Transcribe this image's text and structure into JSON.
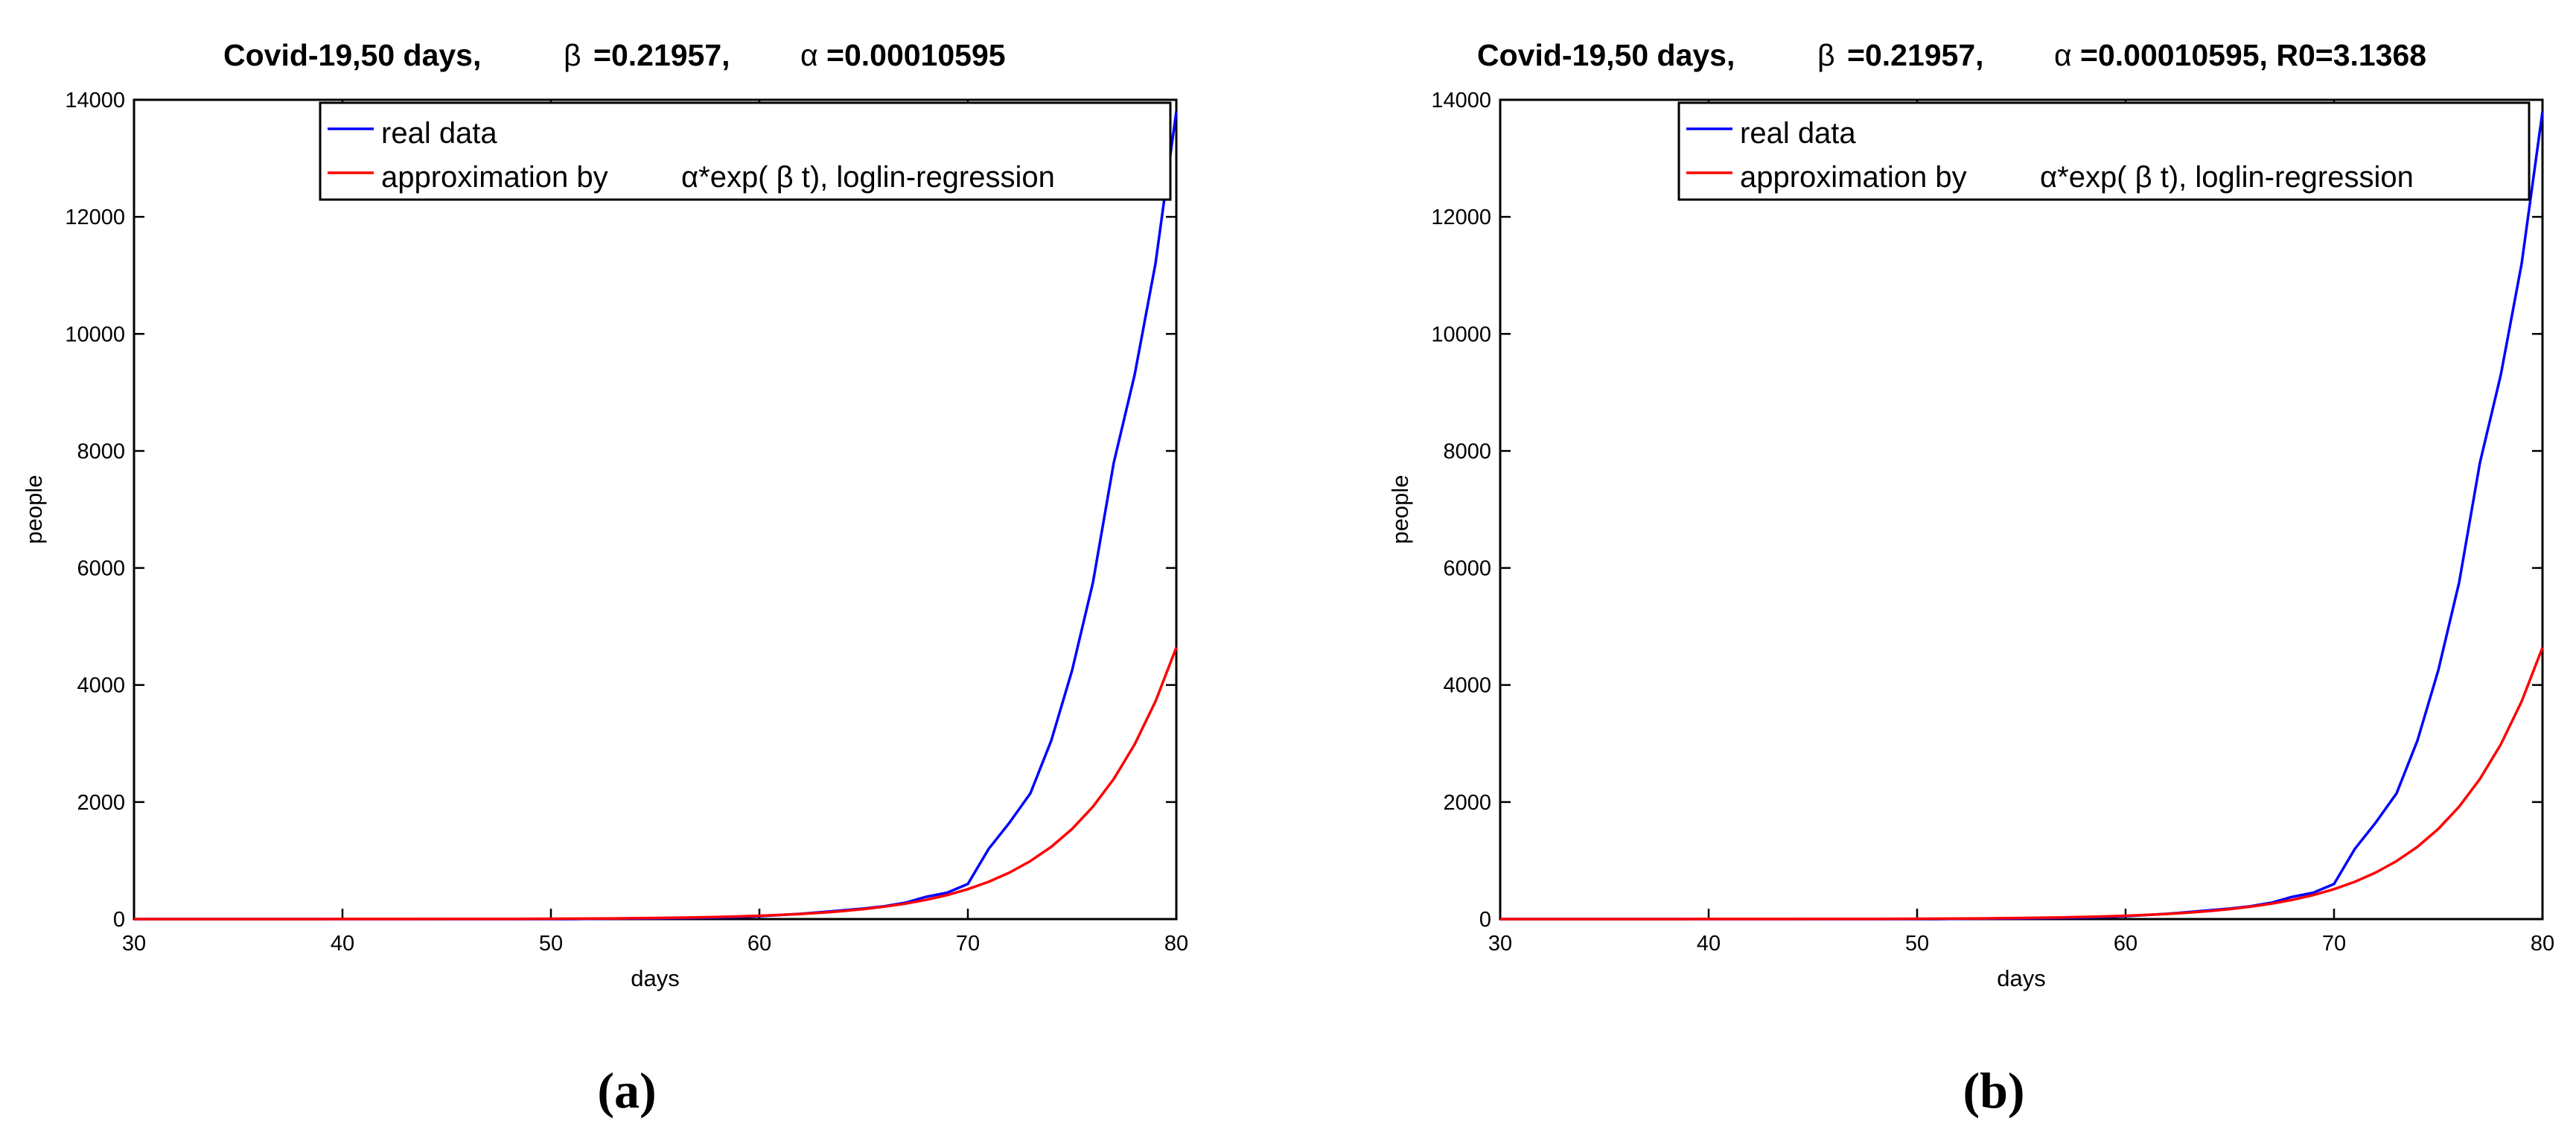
{
  "chart_data": [
    {
      "type": "line",
      "panel_label": "(a)",
      "title": {
        "prefix": "Covid-19,50 days,",
        "beta_symbol": "β",
        "beta_text": "=0.21957,",
        "alpha_symbol": "α",
        "alpha_text": "=0.00010595"
      },
      "xlabel": "days",
      "ylabel": "people",
      "xlim": [
        30,
        80
      ],
      "ylim": [
        0,
        14000
      ],
      "xticks": [
        30,
        40,
        50,
        60,
        70,
        80
      ],
      "yticks": [
        0,
        2000,
        4000,
        6000,
        8000,
        10000,
        12000,
        14000
      ],
      "grid": false,
      "legend_placement": "top-center",
      "legend": {
        "real": "real data",
        "approx_prefix": "approximation by",
        "approx_formula": "α*exp( β t), loglin-regression"
      },
      "series": [
        {
          "name": "real data",
          "color": "#0000ff",
          "x": [
            30,
            31,
            32,
            33,
            34,
            35,
            36,
            37,
            38,
            39,
            40,
            41,
            42,
            43,
            44,
            45,
            46,
            47,
            48,
            49,
            50,
            51,
            52,
            53,
            54,
            55,
            56,
            57,
            58,
            59,
            60,
            61,
            62,
            63,
            64,
            65,
            66,
            67,
            68,
            69,
            70,
            71,
            72,
            73,
            74,
            75,
            76,
            77,
            78,
            79,
            80
          ],
          "y": [
            0,
            0,
            0,
            0,
            0,
            0,
            0,
            0,
            0,
            0,
            0,
            0,
            0,
            0,
            0,
            0,
            0,
            0,
            0,
            0,
            0,
            0,
            5,
            8,
            10,
            12,
            15,
            20,
            25,
            35,
            50,
            70,
            90,
            120,
            150,
            180,
            220,
            280,
            380,
            450,
            600,
            1200,
            1650,
            2150,
            3050,
            4250,
            5750,
            7800,
            9300,
            11200,
            13800
          ]
        },
        {
          "name": "approximation by α*exp( β t), loglin-regression",
          "color": "#ff0000",
          "x": [
            30,
            31,
            32,
            33,
            34,
            35,
            36,
            37,
            38,
            39,
            40,
            41,
            42,
            43,
            44,
            45,
            46,
            47,
            48,
            49,
            50,
            51,
            52,
            53,
            54,
            55,
            56,
            57,
            58,
            59,
            60,
            61,
            62,
            63,
            64,
            65,
            66,
            67,
            68,
            69,
            70,
            71,
            72,
            73,
            74,
            75,
            76,
            77,
            78,
            79,
            80
          ],
          "y": [
            0.08,
            0.1,
            0.12,
            0.15,
            0.19,
            0.24,
            0.3,
            0.37,
            0.46,
            0.57,
            0.7,
            0.9,
            1.1,
            1.4,
            1.7,
            2.1,
            2.6,
            3.3,
            4.1,
            5.1,
            6.4,
            8,
            10,
            12,
            15,
            19,
            24,
            29,
            37,
            46,
            57,
            71,
            88,
            110,
            137,
            170,
            212,
            264,
            329,
            410,
            512,
            638,
            795,
            992,
            1235,
            1540,
            1920,
            2395,
            2985,
            3720,
            4640
          ]
        }
      ]
    },
    {
      "type": "line",
      "panel_label": "(b)",
      "title": {
        "prefix": "Covid-19,50 days,",
        "beta_symbol": "β",
        "beta_text": "=0.21957,",
        "alpha_symbol": "α",
        "alpha_text": "=0.00010595, R0=3.1368"
      },
      "xlabel": "days",
      "ylabel": "people",
      "xlim": [
        30,
        80
      ],
      "ylim": [
        0,
        14000
      ],
      "xticks": [
        30,
        40,
        50,
        60,
        70,
        80
      ],
      "yticks": [
        0,
        2000,
        4000,
        6000,
        8000,
        10000,
        12000,
        14000
      ],
      "grid": false,
      "legend_placement": "top-center",
      "legend": {
        "real": "real data",
        "approx_prefix": "approximation by",
        "approx_formula": "α*exp( β t), loglin-regression"
      },
      "series": [
        {
          "name": "real data",
          "color": "#0000ff",
          "x": [
            30,
            31,
            32,
            33,
            34,
            35,
            36,
            37,
            38,
            39,
            40,
            41,
            42,
            43,
            44,
            45,
            46,
            47,
            48,
            49,
            50,
            51,
            52,
            53,
            54,
            55,
            56,
            57,
            58,
            59,
            60,
            61,
            62,
            63,
            64,
            65,
            66,
            67,
            68,
            69,
            70,
            71,
            72,
            73,
            74,
            75,
            76,
            77,
            78,
            79,
            80
          ],
          "y": [
            0,
            0,
            0,
            0,
            0,
            0,
            0,
            0,
            0,
            0,
            0,
            0,
            0,
            0,
            0,
            0,
            0,
            0,
            0,
            0,
            0,
            0,
            5,
            8,
            10,
            12,
            15,
            20,
            25,
            35,
            50,
            70,
            90,
            120,
            150,
            180,
            220,
            280,
            380,
            450,
            600,
            1200,
            1650,
            2150,
            3050,
            4250,
            5750,
            7800,
            9300,
            11200,
            13800
          ]
        },
        {
          "name": "approximation by α*exp( β t), loglin-regression",
          "color": "#ff0000",
          "x": [
            30,
            31,
            32,
            33,
            34,
            35,
            36,
            37,
            38,
            39,
            40,
            41,
            42,
            43,
            44,
            45,
            46,
            47,
            48,
            49,
            50,
            51,
            52,
            53,
            54,
            55,
            56,
            57,
            58,
            59,
            60,
            61,
            62,
            63,
            64,
            65,
            66,
            67,
            68,
            69,
            70,
            71,
            72,
            73,
            74,
            75,
            76,
            77,
            78,
            79,
            80
          ],
          "y": [
            0.08,
            0.1,
            0.12,
            0.15,
            0.19,
            0.24,
            0.3,
            0.37,
            0.46,
            0.57,
            0.7,
            0.9,
            1.1,
            1.4,
            1.7,
            2.1,
            2.6,
            3.3,
            4.1,
            5.1,
            6.4,
            8,
            10,
            12,
            15,
            19,
            24,
            29,
            37,
            46,
            57,
            71,
            88,
            110,
            137,
            170,
            212,
            264,
            329,
            410,
            512,
            638,
            795,
            992,
            1235,
            1540,
            1920,
            2395,
            2985,
            3720,
            4640
          ]
        }
      ]
    }
  ]
}
